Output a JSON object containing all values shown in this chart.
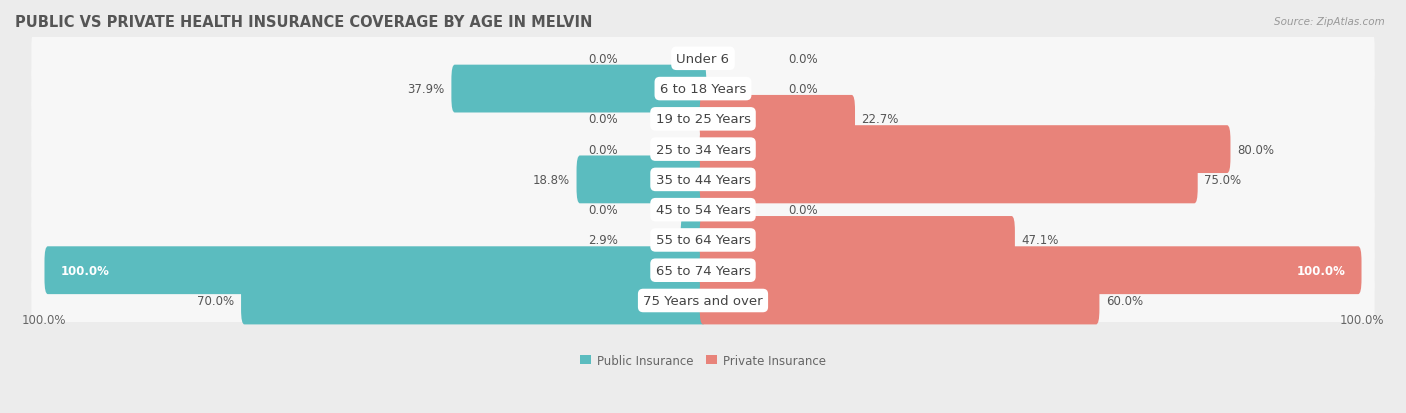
{
  "title": "PUBLIC VS PRIVATE HEALTH INSURANCE COVERAGE BY AGE IN MELVIN",
  "source": "Source: ZipAtlas.com",
  "categories": [
    "Under 6",
    "6 to 18 Years",
    "19 to 25 Years",
    "25 to 34 Years",
    "35 to 44 Years",
    "45 to 54 Years",
    "55 to 64 Years",
    "65 to 74 Years",
    "75 Years and over"
  ],
  "public_values": [
    0.0,
    37.9,
    0.0,
    0.0,
    18.8,
    0.0,
    2.9,
    100.0,
    70.0
  ],
  "private_values": [
    0.0,
    0.0,
    22.7,
    80.0,
    75.0,
    0.0,
    47.1,
    100.0,
    60.0
  ],
  "public_color": "#5bbcbf",
  "private_color": "#e8837a",
  "bg_color": "#ececec",
  "row_bg_color": "#f7f7f7",
  "max_value": 100.0,
  "legend_labels": [
    "Public Insurance",
    "Private Insurance"
  ],
  "axis_label_left": "100.0%",
  "axis_label_right": "100.0%",
  "title_fontsize": 10.5,
  "label_fontsize": 8.5,
  "category_fontsize": 9.5
}
